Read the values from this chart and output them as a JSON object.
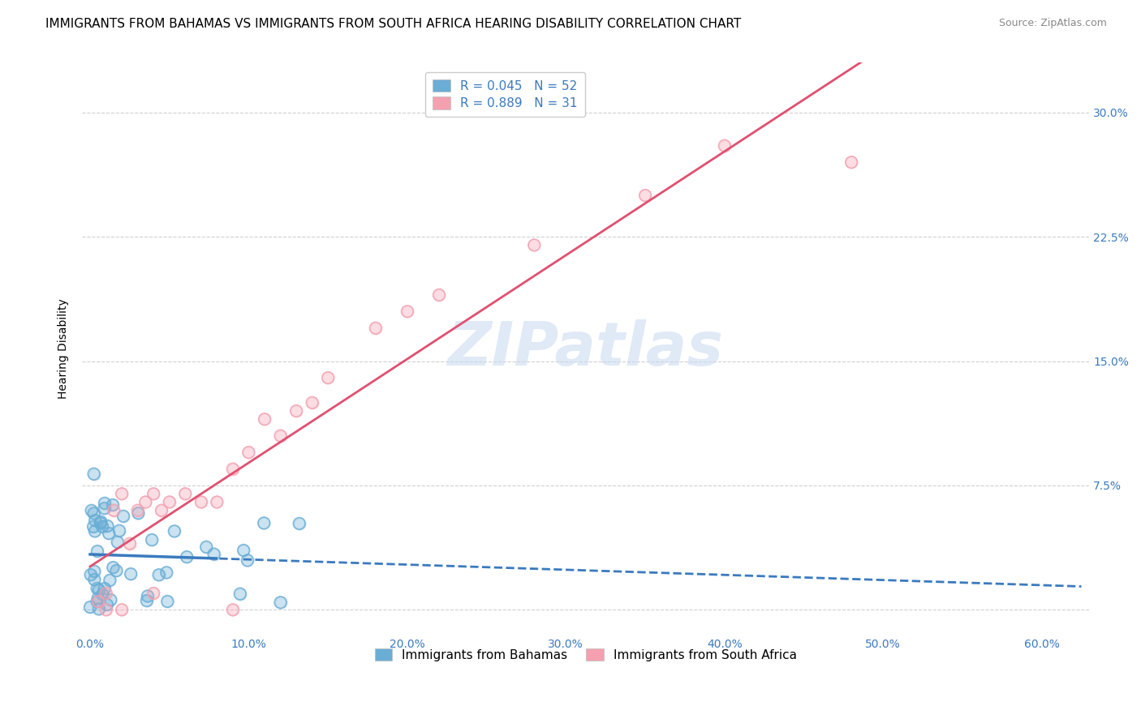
{
  "title": "IMMIGRANTS FROM BAHAMAS VS IMMIGRANTS FROM SOUTH AFRICA HEARING DISABILITY CORRELATION CHART",
  "source": "Source: ZipAtlas.com",
  "ylabel": "Hearing Disability",
  "watermark": "ZIPatlas",
  "x_ticks": [
    0.0,
    0.1,
    0.2,
    0.3,
    0.4,
    0.5,
    0.6
  ],
  "x_tick_labels": [
    "0.0%",
    "10.0%",
    "20.0%",
    "30.0%",
    "40.0%",
    "50.0%",
    "60.0%"
  ],
  "y_ticks": [
    0.0,
    0.075,
    0.15,
    0.225,
    0.3
  ],
  "y_tick_labels": [
    "",
    "7.5%",
    "15.0%",
    "22.5%",
    "30.0%"
  ],
  "xlim": [
    -0.005,
    0.63
  ],
  "ylim": [
    -0.015,
    0.33
  ],
  "legend1_label": "R = 0.045   N = 52",
  "legend2_label": "R = 0.889   N = 31",
  "blue_color": "#6aaed6",
  "pink_color": "#f4a0b0",
  "regression_blue_color": "#3a7abf",
  "regression_pink_color": "#e05070",
  "bahamas_N": 52,
  "sa_N": 31,
  "legend_bottom_labels": [
    "Immigrants from Bahamas",
    "Immigrants from South Africa"
  ],
  "title_fontsize": 11,
  "axis_label_fontsize": 10,
  "tick_fontsize": 10,
  "legend_fontsize": 11,
  "source_fontsize": 9
}
